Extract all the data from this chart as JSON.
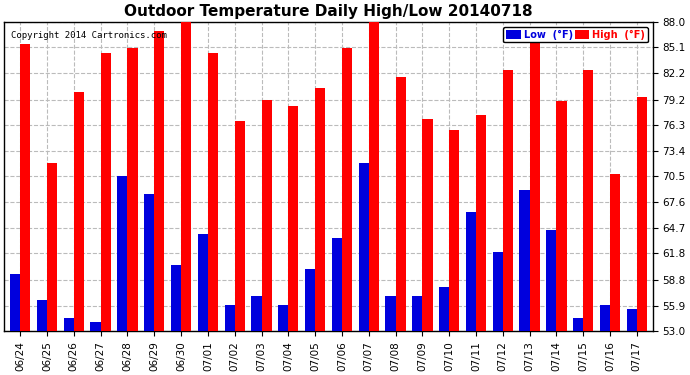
{
  "title": "Outdoor Temperature Daily High/Low 20140718",
  "copyright": "Copyright 2014 Cartronics.com",
  "dates": [
    "06/24",
    "06/25",
    "06/26",
    "06/27",
    "06/28",
    "06/29",
    "06/30",
    "07/01",
    "07/02",
    "07/03",
    "07/04",
    "07/05",
    "07/06",
    "07/07",
    "07/08",
    "07/09",
    "07/10",
    "07/11",
    "07/12",
    "07/13",
    "07/14",
    "07/15",
    "07/16",
    "07/17"
  ],
  "high": [
    85.5,
    72.0,
    80.0,
    84.5,
    85.0,
    87.0,
    89.0,
    84.5,
    76.8,
    79.2,
    78.5,
    80.5,
    85.0,
    88.5,
    81.8,
    77.0,
    75.8,
    77.5,
    82.5,
    86.0,
    79.0,
    82.5,
    70.8,
    79.5
  ],
  "low": [
    59.5,
    56.5,
    54.5,
    54.0,
    70.5,
    68.5,
    60.5,
    64.0,
    56.0,
    57.0,
    56.0,
    60.0,
    63.5,
    72.0,
    57.0,
    57.0,
    58.0,
    66.5,
    62.0,
    69.0,
    64.5,
    54.5,
    56.0,
    55.5
  ],
  "yticks": [
    53.0,
    55.9,
    58.8,
    61.8,
    64.7,
    67.6,
    70.5,
    73.4,
    76.3,
    79.2,
    82.2,
    85.1,
    88.0
  ],
  "ymin": 53.0,
  "ymax": 88.0,
  "bar_width": 0.38,
  "high_color": "#FF0000",
  "low_color": "#0000DD",
  "bg_color": "#FFFFFF",
  "grid_color": "#BBBBBB",
  "title_fontsize": 11,
  "legend_high_label": "High  (°F)",
  "legend_low_label": "Low  (°F)"
}
